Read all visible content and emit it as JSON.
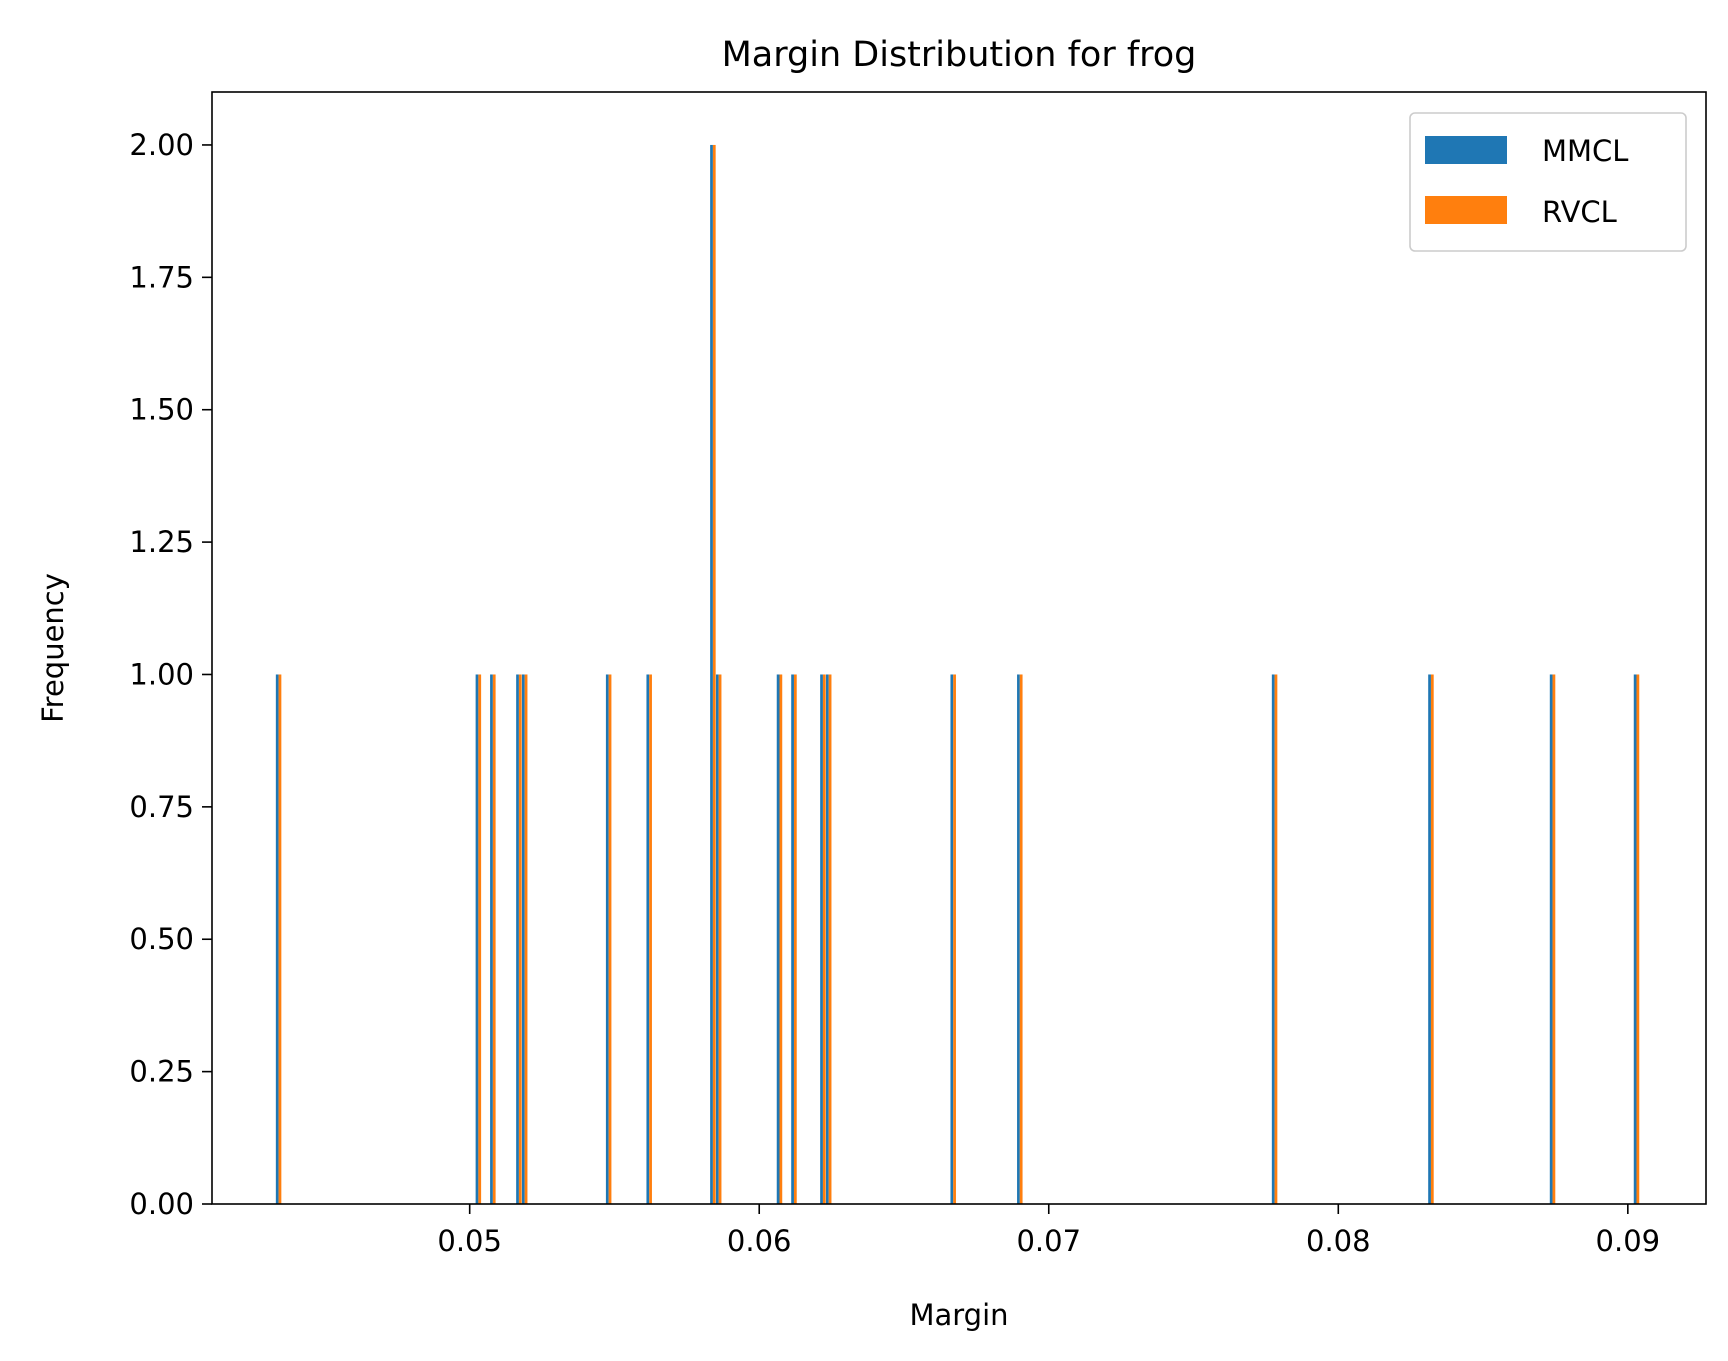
{
  "chart_data": {
    "type": "bar",
    "title": "Margin Distribution for frog",
    "xlabel": "Margin",
    "ylabel": "Frequency",
    "xlim": [
      0.0411,
      0.0927
    ],
    "ylim": [
      0,
      2.1
    ],
    "x_ticks": [
      0.05,
      0.06,
      0.07,
      0.08,
      0.09
    ],
    "x_tick_labels": [
      "0.05",
      "0.06",
      "0.07",
      "0.08",
      "0.09"
    ],
    "y_ticks": [
      0,
      0.25,
      0.5,
      0.75,
      1.0,
      1.25,
      1.5,
      1.75,
      2.0
    ],
    "y_tick_labels": [
      "0.00",
      "0.25",
      "0.50",
      "0.75",
      "1.00",
      "1.25",
      "1.50",
      "1.75",
      "2.00"
    ],
    "grid": false,
    "legend_position": "top-right",
    "bar_width": 9.5e-05,
    "series": [
      {
        "name": "MMCL",
        "color": "#1f77b4",
        "x": [
          0.0434,
          0.0503,
          0.0508,
          0.0517,
          0.0519,
          0.0548,
          0.0562,
          0.0584,
          0.0586,
          0.0607,
          0.0612,
          0.0622,
          0.0624,
          0.0667,
          0.069,
          0.0778,
          0.0832,
          0.0874,
          0.0903
        ],
        "values": [
          1,
          1,
          1,
          1,
          1,
          1,
          1,
          2,
          1,
          1,
          1,
          1,
          1,
          1,
          1,
          1,
          1,
          1,
          1
        ]
      },
      {
        "name": "RVCL",
        "color": "#ff7f0e",
        "x": [
          0.0434,
          0.0503,
          0.0508,
          0.0517,
          0.0519,
          0.0548,
          0.0562,
          0.0584,
          0.0586,
          0.0607,
          0.0612,
          0.0622,
          0.0624,
          0.0667,
          0.069,
          0.0778,
          0.0832,
          0.0874,
          0.0903
        ],
        "values": [
          1,
          1,
          1,
          1,
          1,
          1,
          1,
          2,
          1,
          1,
          1,
          1,
          1,
          1,
          1,
          1,
          1,
          1,
          1
        ]
      }
    ]
  }
}
